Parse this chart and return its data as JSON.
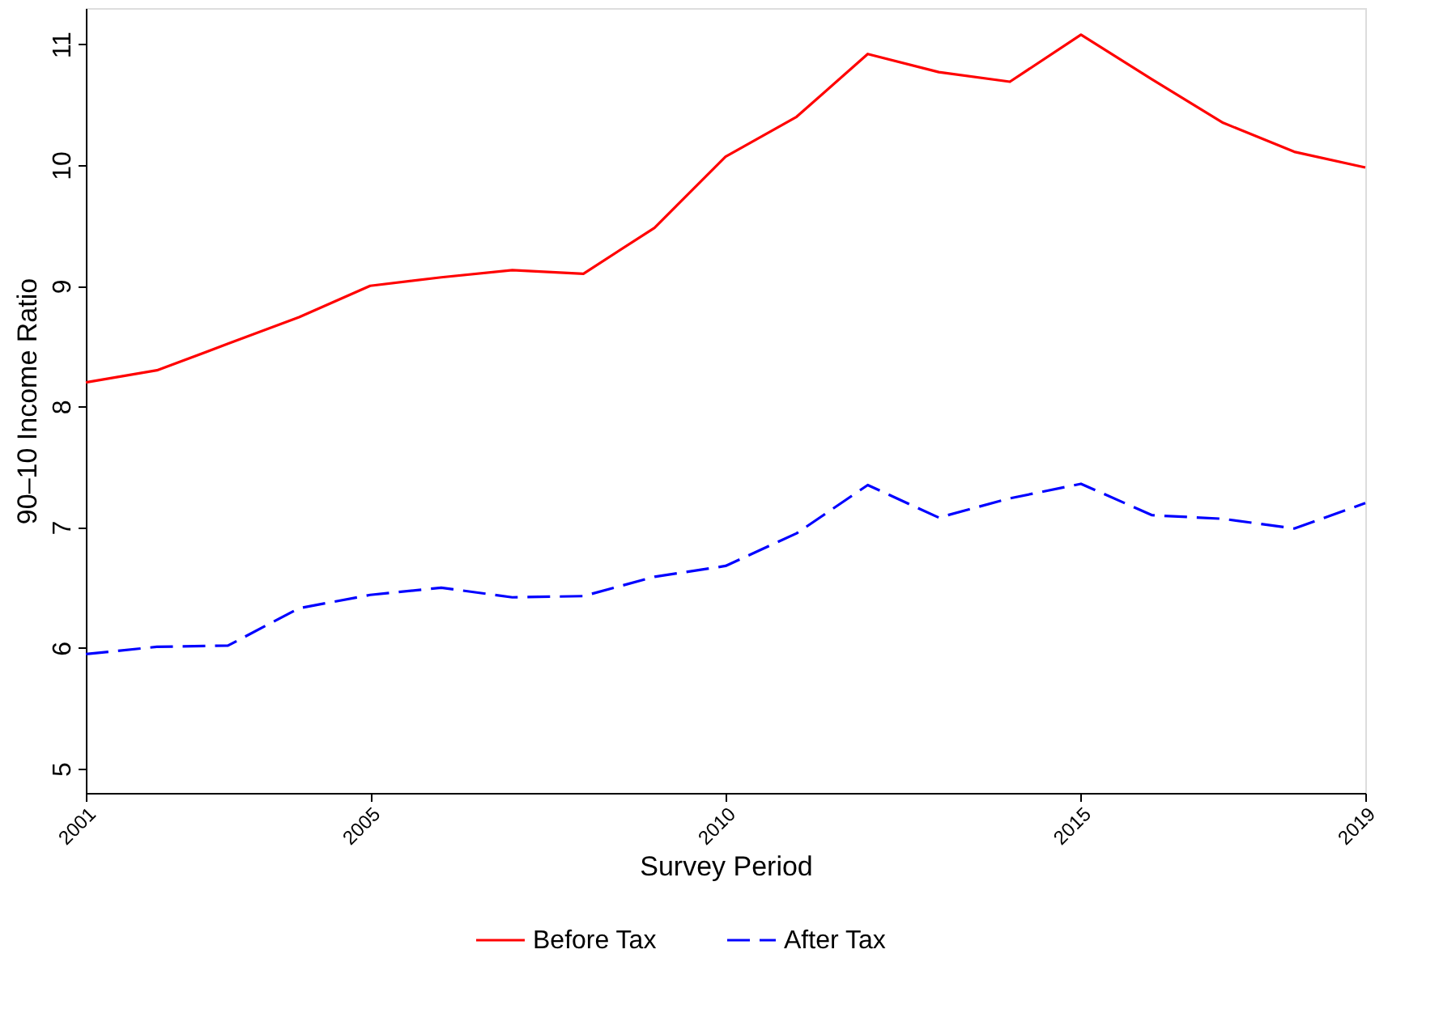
{
  "chart_data": {
    "type": "line",
    "xlabel": "Survey Period",
    "ylabel": "90–10 Income Ratio",
    "x": [
      2001,
      2002,
      2003,
      2004,
      2005,
      2006,
      2007,
      2008,
      2009,
      2010,
      2011,
      2012,
      2013,
      2014,
      2015,
      2016,
      2017,
      2018,
      2019
    ],
    "series": [
      {
        "name": "Before Tax",
        "color": "#ff0000",
        "line_style": "solid",
        "values": [
          8.2,
          8.3,
          8.52,
          8.74,
          9.0,
          9.07,
          9.13,
          9.1,
          9.48,
          10.07,
          10.4,
          10.92,
          10.77,
          10.69,
          11.08,
          10.71,
          10.35,
          10.11,
          9.98
        ]
      },
      {
        "name": "After Tax",
        "color": "#0000ff",
        "line_style": "dashed",
        "values": [
          5.95,
          6.01,
          6.02,
          6.33,
          6.44,
          6.5,
          6.42,
          6.43,
          6.59,
          6.68,
          6.95,
          7.35,
          7.08,
          7.24,
          7.36,
          7.1,
          7.07,
          6.99,
          7.2
        ]
      }
    ],
    "xlim": [
      2001,
      2019
    ],
    "xticks": [
      2001,
      2005,
      2010,
      2015,
      2019
    ],
    "ylim": [
      4.8,
      11.3
    ],
    "yticks": [
      5,
      6,
      7,
      8,
      9,
      10,
      11
    ],
    "grid": false,
    "legend": "bottom",
    "marker": "none"
  }
}
